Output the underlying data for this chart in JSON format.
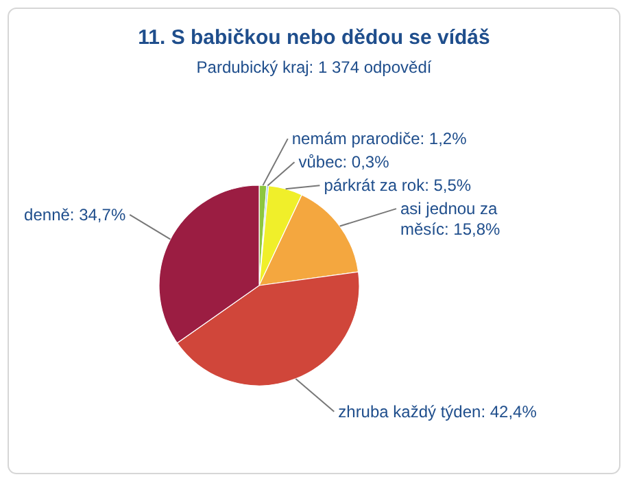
{
  "chart_data": {
    "type": "pie",
    "title": "11. S babičkou nebo dědou se vídáš",
    "subtitle": "Pardubický kraj: 1 374 odpovědí",
    "categories": [
      "nemám prarodiče",
      "vůbec",
      "párkrát za rok",
      "asi jednou za měsíc",
      "zhruba každý týden",
      "denně"
    ],
    "values": [
      1.2,
      0.3,
      5.5,
      15.8,
      42.4,
      34.7
    ],
    "value_labels": [
      "1,2%",
      "0,3%",
      "5,5%",
      "15,8%",
      "42,4%",
      "34,7%"
    ],
    "colors": [
      "#8dc63f",
      "#9ec9e8",
      "#f0ef2a",
      "#f4a73f",
      "#d0463a",
      "#9b1d42"
    ]
  }
}
